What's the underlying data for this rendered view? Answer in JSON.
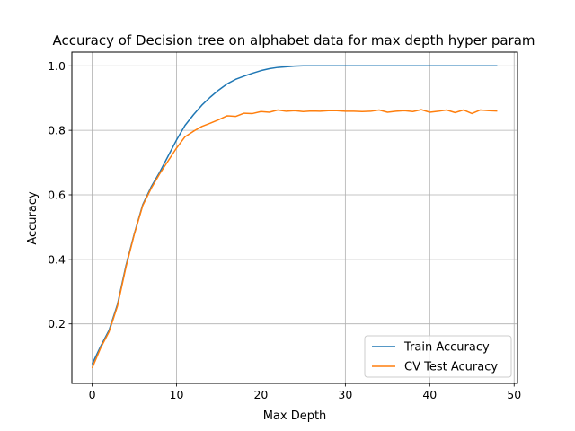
{
  "chart_data": {
    "type": "line",
    "title": "Accuracy of Decision tree on alphabet data for max depth hyper param",
    "xlabel": "Max Depth",
    "ylabel": "Accuracy",
    "xlim": [
      -2.4,
      50.4
    ],
    "ylim": [
      0.0155,
      1.0425
    ],
    "xticks": [
      0,
      10,
      20,
      30,
      40,
      50
    ],
    "yticks": [
      0.2,
      0.4,
      0.6,
      0.8,
      1.0
    ],
    "xtick_labels": [
      "0",
      "10",
      "20",
      "30",
      "40",
      "50"
    ],
    "ytick_labels": [
      "0.2",
      "0.4",
      "0.6",
      "0.8",
      "1.0"
    ],
    "grid": true,
    "legend_position": "lower-right",
    "series": [
      {
        "name": "Train Accuracy",
        "color": "#1f77b4",
        "x": [
          0,
          1,
          2,
          3,
          4,
          5,
          6,
          7,
          8,
          9,
          10,
          11,
          12,
          13,
          14,
          15,
          16,
          17,
          18,
          19,
          20,
          21,
          22,
          23,
          24,
          25,
          26,
          27,
          28,
          29,
          30,
          31,
          32,
          33,
          34,
          35,
          36,
          37,
          38,
          39,
          40,
          41,
          42,
          43,
          44,
          45,
          46,
          47,
          48
        ],
        "y": [
          0.075,
          0.13,
          0.18,
          0.26,
          0.38,
          0.48,
          0.57,
          0.625,
          0.67,
          0.72,
          0.77,
          0.815,
          0.848,
          0.878,
          0.903,
          0.925,
          0.944,
          0.958,
          0.968,
          0.977,
          0.985,
          0.991,
          0.995,
          0.997,
          0.999,
          1.0,
          1.0,
          1.0,
          1.0,
          1.0,
          1.0,
          1.0,
          1.0,
          1.0,
          1.0,
          1.0,
          1.0,
          1.0,
          1.0,
          1.0,
          1.0,
          1.0,
          1.0,
          1.0,
          1.0,
          1.0,
          1.0,
          1.0,
          1.0
        ]
      },
      {
        "name": "CV Test Acuracy",
        "color": "#ff7f0e",
        "x": [
          0,
          1,
          2,
          3,
          4,
          5,
          6,
          7,
          8,
          9,
          10,
          11,
          12,
          13,
          14,
          15,
          16,
          17,
          18,
          19,
          20,
          21,
          22,
          23,
          24,
          25,
          26,
          27,
          28,
          29,
          30,
          31,
          32,
          33,
          34,
          35,
          36,
          37,
          38,
          39,
          40,
          41,
          42,
          43,
          44,
          45,
          46,
          47,
          48
        ],
        "y": [
          0.063,
          0.125,
          0.175,
          0.255,
          0.375,
          0.478,
          0.567,
          0.62,
          0.665,
          0.705,
          0.745,
          0.78,
          0.797,
          0.812,
          0.822,
          0.833,
          0.845,
          0.843,
          0.853,
          0.852,
          0.858,
          0.856,
          0.863,
          0.859,
          0.861,
          0.858,
          0.86,
          0.859,
          0.861,
          0.861,
          0.859,
          0.859,
          0.858,
          0.859,
          0.863,
          0.856,
          0.859,
          0.861,
          0.858,
          0.864,
          0.856,
          0.859,
          0.863,
          0.855,
          0.863,
          0.852,
          0.863,
          0.861,
          0.86
        ]
      }
    ]
  }
}
